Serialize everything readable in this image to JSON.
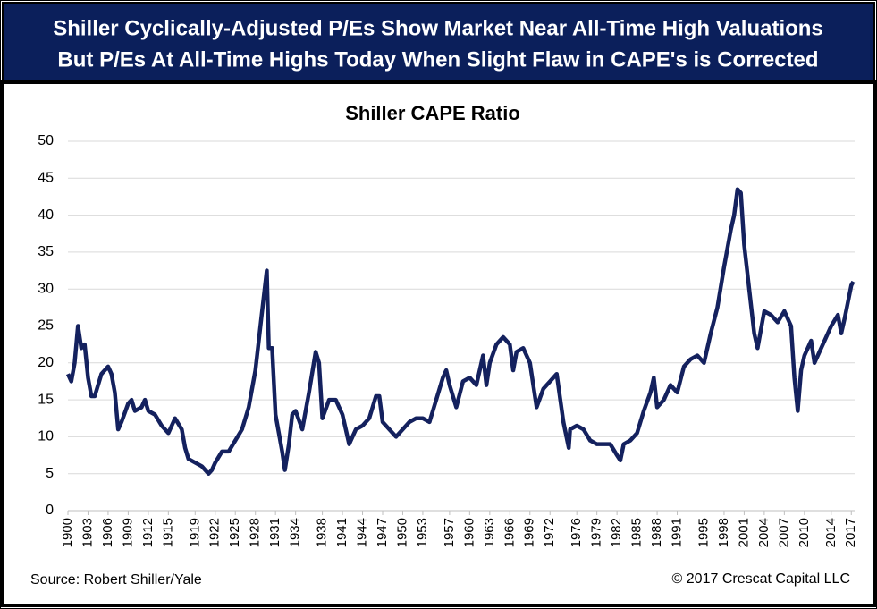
{
  "chart_data": {
    "type": "line",
    "heading": [
      "Shiller Cyclically-Adjusted P/Es Show Market Near All-Time High Valuations",
      "But P/Es At All-Time Highs Today When Slight Flaw in CAPE's is Corrected"
    ],
    "title": "Shiller CAPE Ratio",
    "source": "Source: Robert Shiller/Yale",
    "credit": "© 2017 Crescat Capital LLC",
    "color": "#14215e",
    "grid": true,
    "xlim": [
      1900,
      2017.5
    ],
    "ylim": [
      0,
      50
    ],
    "yticks": [
      0,
      5,
      10,
      15,
      20,
      25,
      30,
      35,
      40,
      45,
      50
    ],
    "xticks": [
      1900,
      1903,
      1906,
      1909,
      1912,
      1915,
      1919,
      1922,
      1925,
      1928,
      1931,
      1934,
      1938,
      1941,
      1944,
      1947,
      1950,
      1953,
      1957,
      1960,
      1963,
      1966,
      1969,
      1972,
      1976,
      1979,
      1982,
      1985,
      1988,
      1991,
      1995,
      1998,
      2001,
      2004,
      2007,
      2010,
      2014,
      2017
    ],
    "x": [
      1900,
      1900.5,
      1901,
      1901.5,
      1902,
      1902.5,
      1903,
      1903.5,
      1904,
      1905,
      1906,
      1906.5,
      1907,
      1907.5,
      1908,
      1909,
      1909.5,
      1910,
      1911,
      1911.5,
      1912,
      1913,
      1914,
      1915,
      1916,
      1917,
      1917.5,
      1918,
      1919,
      1920,
      1921,
      1921.5,
      1922,
      1923,
      1924,
      1925,
      1926,
      1927,
      1928,
      1929,
      1929.7,
      1930,
      1930.5,
      1931,
      1932,
      1932.4,
      1933,
      1933.5,
      1934,
      1935,
      1936,
      1937,
      1937.5,
      1938,
      1939,
      1940,
      1941,
      1942,
      1943,
      1944,
      1945,
      1946,
      1946.5,
      1947,
      1948,
      1949,
      1950,
      1951,
      1952,
      1953,
      1954,
      1955,
      1956,
      1956.5,
      1957,
      1958,
      1959,
      1960,
      1961,
      1962,
      1962.5,
      1963,
      1964,
      1965,
      1966,
      1966.5,
      1967,
      1968,
      1969,
      1970,
      1971,
      1972,
      1973,
      1974,
      1974.8,
      1975,
      1976,
      1977,
      1978,
      1979,
      1980,
      1981,
      1982,
      1982.5,
      1983,
      1984,
      1985,
      1986,
      1987,
      1987.5,
      1988,
      1989,
      1990,
      1991,
      1992,
      1993,
      1994,
      1995,
      1996,
      1997,
      1998,
      1999,
      1999.5,
      2000,
      2000.5,
      2001,
      2002,
      2002.5,
      2003,
      2004,
      2005,
      2006,
      2007,
      2008,
      2008.5,
      2009,
      2009.5,
      2010,
      2011,
      2011.5,
      2012,
      2013,
      2014,
      2015,
      2015.5,
      2016,
      2017,
      2017.3
    ],
    "values": [
      18.5,
      17.5,
      20,
      25,
      22,
      22.5,
      18,
      15.5,
      15.5,
      18.5,
      19.5,
      18.5,
      16,
      11,
      12,
      14.5,
      15,
      13.5,
      14,
      15,
      13.5,
      13,
      11.5,
      10.5,
      12.5,
      11,
      8.5,
      7,
      6.5,
      6,
      5,
      5.5,
      6.5,
      8,
      8,
      9.5,
      11,
      14,
      19,
      27,
      32.5,
      22,
      22,
      13,
      8,
      5.5,
      9,
      13,
      13.5,
      11,
      16,
      21.5,
      20,
      12.5,
      15,
      15,
      13,
      9,
      11,
      11.5,
      12.5,
      15.5,
      15.5,
      12,
      11,
      10,
      11,
      12,
      12.5,
      12.5,
      12,
      15,
      18,
      19,
      17,
      14,
      17.5,
      18,
      17,
      21,
      17,
      20,
      22.5,
      23.5,
      22.5,
      19,
      21.5,
      22,
      20,
      14,
      16.5,
      17.5,
      18.5,
      12,
      8.5,
      11,
      11.5,
      11,
      9.5,
      9,
      9,
      9,
      7.5,
      6.8,
      9,
      9.5,
      10.5,
      13.5,
      16,
      18,
      14,
      15,
      17,
      16,
      19.5,
      20.5,
      21,
      20,
      24,
      27.5,
      33,
      38,
      40,
      43.5,
      43,
      36,
      28,
      24,
      22,
      27,
      26.5,
      25.5,
      27,
      25,
      18,
      13.5,
      19,
      21,
      23,
      20,
      21,
      23,
      25,
      26.5,
      24,
      26,
      30.5,
      31
    ]
  }
}
